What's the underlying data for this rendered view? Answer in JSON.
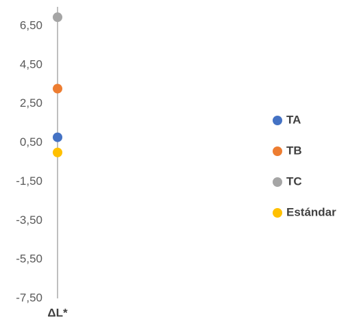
{
  "chart_data": {
    "type": "dot",
    "categories": [
      "ΔL*"
    ],
    "series": [
      {
        "name": "TA",
        "color": "#4472c4",
        "values": [
          0.78
        ]
      },
      {
        "name": "TB",
        "color": "#ed7d31",
        "values": [
          3.28
        ]
      },
      {
        "name": "TC",
        "color": "#a5a5a5",
        "values": [
          6.95
        ]
      },
      {
        "name": "Estándar",
        "color": "#ffc000",
        "values": [
          0
        ]
      }
    ],
    "ylim": [
      -7.5,
      7.5
    ],
    "yticks": [
      {
        "value": 6.5,
        "label": "6,50"
      },
      {
        "value": 4.5,
        "label": "4,50"
      },
      {
        "value": 2.5,
        "label": "2,50"
      },
      {
        "value": 0.5,
        "label": "0,50"
      },
      {
        "value": -1.5,
        "label": "-1,50"
      },
      {
        "value": -3.5,
        "label": "-3,50"
      },
      {
        "value": -5.5,
        "label": "-5,50"
      },
      {
        "value": -7.5,
        "label": "-7,50"
      }
    ],
    "grid": false,
    "legend": "right"
  }
}
